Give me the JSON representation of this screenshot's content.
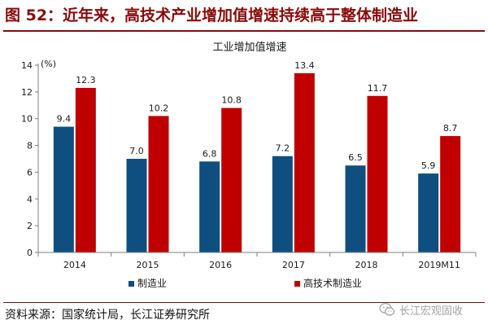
{
  "figure": {
    "title": "图 52：近年来，高技术产业增加值增速持续高于整体制造业",
    "source": "资料来源：国家统计局，长江证券研究所",
    "watermark": "长江宏观固收"
  },
  "colors": {
    "series_1": "#0f4f7f",
    "series_2": "#c00000",
    "title": "#8b0a0a",
    "axis": "#7f7f7f"
  },
  "chart_data": {
    "type": "bar",
    "title": "工业增加值增速",
    "unit_label": "(%)",
    "categories": [
      "2014",
      "2015",
      "2016",
      "2017",
      "2018",
      "2019M11"
    ],
    "series": [
      {
        "name": "制造业",
        "values": [
          9.4,
          7.0,
          6.8,
          7.2,
          6.5,
          5.9
        ],
        "labels": [
          "9.4",
          "7.0",
          "6.8",
          "7.2",
          "6.5",
          "5.9"
        ]
      },
      {
        "name": "高技术制造业",
        "values": [
          12.3,
          10.2,
          10.8,
          13.4,
          11.7,
          8.7
        ],
        "labels": [
          "12.3",
          "10.2",
          "10.8",
          "13.4",
          "11.7",
          "8.7"
        ]
      }
    ],
    "ylim": [
      0,
      14
    ],
    "yticks": [
      0,
      2,
      4,
      6,
      8,
      10,
      12,
      14
    ],
    "grid": false,
    "legend": "bottom"
  }
}
